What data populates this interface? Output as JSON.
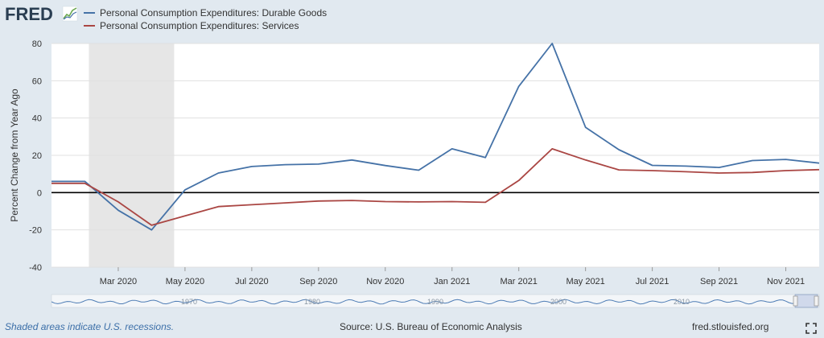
{
  "brand": {
    "logo_text": "FRED",
    "logo_icon": "fred-chart-icon"
  },
  "colors": {
    "page_bg": "#e1e9f0",
    "plot_bg": "#ffffff",
    "recession_band": "#e6e6e6",
    "durable": "#4572a7",
    "services": "#aa4643",
    "zero_line": "#000000",
    "gridline": "#e0e0e0",
    "navigator_line": "#4f7db5"
  },
  "chart_data": {
    "type": "line",
    "ylabel": "Percent Change from Year Ago",
    "ylim": [
      -40,
      80
    ],
    "yticks": [
      80,
      60,
      40,
      20,
      0,
      -20,
      -40
    ],
    "x_range": [
      "2020-01",
      "2021-12"
    ],
    "x_ticks": [
      {
        "label": "Mar 2020",
        "date": "2020-03"
      },
      {
        "label": "May 2020",
        "date": "2020-05"
      },
      {
        "label": "Jul 2020",
        "date": "2020-07"
      },
      {
        "label": "Sep 2020",
        "date": "2020-09"
      },
      {
        "label": "Nov 2020",
        "date": "2020-11"
      },
      {
        "label": "Jan 2021",
        "date": "2021-01"
      },
      {
        "label": "Mar 2021",
        "date": "2021-03"
      },
      {
        "label": "May 2021",
        "date": "2021-05"
      },
      {
        "label": "Jul 2021",
        "date": "2021-07"
      },
      {
        "label": "Sep 2021",
        "date": "2021-09"
      },
      {
        "label": "Nov 2021",
        "date": "2021-11"
      }
    ],
    "dates": [
      "2020-01",
      "2020-02",
      "2020-03",
      "2020-04",
      "2020-05",
      "2020-06",
      "2020-07",
      "2020-08",
      "2020-09",
      "2020-10",
      "2020-11",
      "2020-12",
      "2021-01",
      "2021-02",
      "2021-03",
      "2021-04",
      "2021-05",
      "2021-06",
      "2021-07",
      "2021-08",
      "2021-09",
      "2021-10",
      "2021-11",
      "2021-12"
    ],
    "recession": {
      "start": "2020-02",
      "end": "2020-04"
    },
    "grid": true,
    "legend_position": "top-left",
    "series": [
      {
        "name": "Personal Consumption Expenditures: Durable Goods",
        "color": "#4572a7",
        "values": [
          6,
          6,
          -9.5,
          -20,
          1.5,
          10.5,
          14,
          15,
          15.3,
          17.5,
          14.5,
          12,
          23.5,
          18.8,
          57,
          80,
          35,
          23,
          14.6,
          14.2,
          13.5,
          17.2,
          17.8,
          15.8
        ]
      },
      {
        "name": "Personal Consumption Expenditures: Services",
        "color": "#aa4643",
        "values": [
          5,
          5,
          -5,
          -17.5,
          -12.5,
          -7.5,
          -6.5,
          -5.5,
          -4.5,
          -4.2,
          -4.8,
          -5,
          -4.8,
          -5.2,
          6.5,
          23.5,
          17.5,
          12.2,
          11.8,
          11.2,
          10.5,
          10.8,
          11.8,
          12.3
        ]
      }
    ],
    "navigator": {
      "labels": [
        "1970",
        "1980",
        "1990",
        "2000",
        "2010"
      ]
    }
  },
  "footer": {
    "note": "Shaded areas indicate U.S. recessions.",
    "source": "Source: U.S. Bureau of Economic Analysis",
    "site": "fred.stlouisfed.org"
  },
  "icons": {
    "expand": "expand-icon"
  }
}
